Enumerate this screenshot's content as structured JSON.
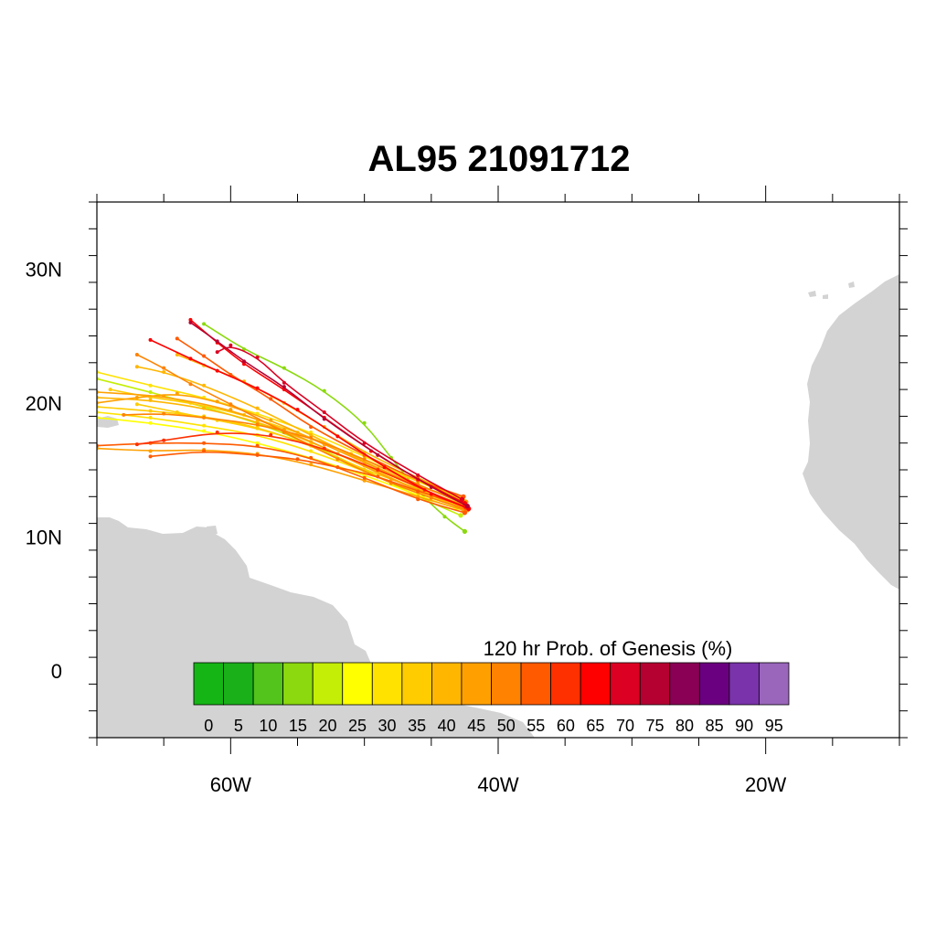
{
  "title": "AL95 21091712",
  "map": {
    "lon_range": [
      -70,
      -10
    ],
    "lat_range": [
      -5,
      35
    ],
    "land_color": "#d3d3d3",
    "lat_labels": [
      {
        "lat": 30,
        "text": "30N"
      },
      {
        "lat": 20,
        "text": "20N"
      },
      {
        "lat": 10,
        "text": "10N"
      },
      {
        "lat": 0,
        "text": "0"
      }
    ],
    "lon_labels": [
      {
        "lon": -60,
        "text": "60W"
      },
      {
        "lon": -40,
        "text": "40W"
      },
      {
        "lon": -20,
        "text": "20W"
      }
    ]
  },
  "colorbar": {
    "title": "120 hr Prob. of Genesis (%)",
    "labels": [
      "0",
      "5",
      "10",
      "15",
      "20",
      "25",
      "30",
      "35",
      "40",
      "45",
      "50",
      "55",
      "60",
      "65",
      "70",
      "75",
      "80",
      "85",
      "90",
      "95"
    ],
    "colors": [
      "#15b515",
      "#1ab01a",
      "#52c41c",
      "#8bd90e",
      "#c4ee05",
      "#ffff00",
      "#ffe200",
      "#ffcc00",
      "#ffb600",
      "#ffa000",
      "#ff8200",
      "#ff5a00",
      "#ff3000",
      "#ff0000",
      "#dc0022",
      "#b50032",
      "#8a0055",
      "#6a0080",
      "#7a33aa",
      "#9966bb"
    ]
  },
  "tracks": [
    {
      "p": 45,
      "pts": [
        [
          -42.5,
          12.4
        ],
        [
          -45,
          13.1
        ],
        [
          -48,
          14.3
        ],
        [
          -52,
          16.2
        ],
        [
          -56,
          18.0
        ],
        [
          -60,
          19.5
        ],
        [
          -65,
          20.5
        ],
        [
          -70,
          20.8
        ]
      ]
    },
    {
      "p": 40,
      "pts": [
        [
          -42.8,
          12.2
        ],
        [
          -46,
          13.5
        ],
        [
          -50,
          15.3
        ],
        [
          -54,
          17.1
        ],
        [
          -58,
          18.6
        ],
        [
          -62,
          19.6
        ],
        [
          -66,
          20.2
        ],
        [
          -70,
          20.4
        ]
      ]
    },
    {
      "p": 40,
      "pts": [
        [
          -42.6,
          12.7
        ],
        [
          -46,
          13.8
        ],
        [
          -50,
          15.6
        ],
        [
          -54,
          17.6
        ],
        [
          -58,
          19.6
        ],
        [
          -62,
          21.3
        ],
        [
          -65,
          22.3
        ],
        [
          -67,
          22.7
        ]
      ]
    },
    {
      "p": 35,
      "pts": [
        [
          -42.9,
          12.5
        ],
        [
          -46,
          13.6
        ],
        [
          -50,
          15.0
        ],
        [
          -54,
          16.8
        ],
        [
          -58,
          18.2
        ],
        [
          -62,
          19.0
        ],
        [
          -66,
          19.4
        ],
        [
          -70,
          19.7
        ]
      ]
    },
    {
      "p": 30,
      "pts": [
        [
          -43.0,
          12.9
        ],
        [
          -46,
          14.1
        ],
        [
          -50,
          16.0
        ],
        [
          -54,
          17.8
        ],
        [
          -58,
          19.2
        ],
        [
          -62,
          20.4
        ],
        [
          -66,
          21.3
        ],
        [
          -70,
          22.3
        ]
      ]
    },
    {
      "p": 30,
      "pts": [
        [
          -43.1,
          12.3
        ],
        [
          -46,
          13.3
        ],
        [
          -50,
          14.9
        ],
        [
          -54,
          16.4
        ],
        [
          -58,
          17.6
        ],
        [
          -62,
          18.3
        ],
        [
          -66,
          18.9
        ],
        [
          -70,
          19.3
        ]
      ]
    },
    {
      "p": 45,
      "pts": [
        [
          -42.4,
          12.6
        ],
        [
          -45.5,
          13.6
        ],
        [
          -49,
          15.1
        ],
        [
          -53,
          16.9
        ],
        [
          -57,
          18.7
        ],
        [
          -61,
          20.1
        ],
        [
          -64,
          20.7
        ],
        [
          -67,
          20.4
        ],
        [
          -70,
          20.0
        ]
      ]
    },
    {
      "p": 50,
      "pts": [
        [
          -42.3,
          12.0
        ],
        [
          -45,
          12.9
        ],
        [
          -48,
          14.0
        ],
        [
          -52,
          15.8
        ],
        [
          -56,
          17.8
        ],
        [
          -60,
          19.9
        ],
        [
          -63,
          21.4
        ],
        [
          -65,
          22.6
        ],
        [
          -67,
          23.6
        ]
      ]
    },
    {
      "p": 55,
      "pts": [
        [
          -42.5,
          11.8
        ],
        [
          -46,
          12.8
        ],
        [
          -50,
          14.4
        ],
        [
          -54,
          15.9
        ],
        [
          -58,
          16.8
        ],
        [
          -62,
          17.0
        ],
        [
          -66,
          17.0
        ],
        [
          -70,
          16.8
        ]
      ]
    },
    {
      "p": 55,
      "pts": [
        [
          -42.6,
          13.0
        ],
        [
          -46,
          14.2
        ],
        [
          -50,
          16.1
        ],
        [
          -54,
          18.2
        ],
        [
          -57,
          20.3
        ],
        [
          -60,
          22.1
        ],
        [
          -62,
          23.5
        ],
        [
          -64,
          24.8
        ]
      ]
    },
    {
      "p": 60,
      "pts": [
        [
          -42.4,
          12.2
        ],
        [
          -45.5,
          13.5
        ],
        [
          -49,
          15.0
        ],
        [
          -53,
          16.6
        ],
        [
          -57,
          17.6
        ],
        [
          -61,
          17.8
        ],
        [
          -65,
          17.2
        ],
        [
          -67,
          16.9
        ]
      ]
    },
    {
      "p": 65,
      "pts": [
        [
          -42.2,
          12.1
        ],
        [
          -45,
          13.2
        ],
        [
          -48.5,
          15.2
        ],
        [
          -52,
          17.5
        ],
        [
          -55,
          19.5
        ],
        [
          -58,
          21.1
        ],
        [
          -61,
          22.4
        ],
        [
          -63,
          23.3
        ],
        [
          -66,
          24.7
        ]
      ]
    },
    {
      "p": 65,
      "pts": [
        [
          -42.5,
          12.5
        ],
        [
          -46,
          14.3
        ],
        [
          -49.5,
          16.4
        ],
        [
          -53,
          18.9
        ],
        [
          -56,
          21.0
        ],
        [
          -59,
          22.9
        ],
        [
          -61,
          24.5
        ],
        [
          -63,
          26.2
        ]
      ]
    },
    {
      "p": 70,
      "pts": [
        [
          -42.7,
          12.8
        ],
        [
          -46,
          14.6
        ],
        [
          -50,
          17.0
        ],
        [
          -53,
          19.3
        ],
        [
          -56,
          21.5
        ],
        [
          -58,
          23.4
        ],
        [
          -60,
          24.3
        ],
        [
          -61,
          23.8
        ]
      ]
    },
    {
      "p": 75,
      "pts": [
        [
          -42.3,
          12.3
        ],
        [
          -45,
          13.7
        ],
        [
          -49,
          16.1
        ],
        [
          -53,
          18.8
        ],
        [
          -56,
          21.2
        ],
        [
          -59,
          23.1
        ],
        [
          -61,
          24.6
        ],
        [
          -63,
          26.0
        ]
      ]
    },
    {
      "p": 15,
      "pts": [
        [
          -42.5,
          10.4
        ],
        [
          -44,
          11.5
        ],
        [
          -46,
          13.4
        ],
        [
          -48,
          15.9
        ],
        [
          -50,
          18.5
        ],
        [
          -53,
          20.9
        ],
        [
          -56,
          22.6
        ],
        [
          -59,
          24.0
        ],
        [
          -62,
          25.9
        ]
      ]
    },
    {
      "p": 20,
      "pts": [
        [
          -42.8,
          11.6
        ],
        [
          -46,
          13.0
        ],
        [
          -50,
          15.0
        ],
        [
          -54,
          16.9
        ],
        [
          -58,
          18.5
        ],
        [
          -62,
          19.7
        ],
        [
          -66,
          20.8
        ],
        [
          -70,
          21.8
        ]
      ]
    },
    {
      "p": 25,
      "pts": [
        [
          -43.1,
          12.1
        ],
        [
          -46,
          13.1
        ],
        [
          -50,
          14.6
        ],
        [
          -54,
          15.9
        ],
        [
          -58,
          17.0
        ],
        [
          -62,
          17.9
        ],
        [
          -66,
          18.5
        ],
        [
          -70,
          18.9
        ]
      ]
    },
    {
      "p": 35,
      "pts": [
        [
          -43.2,
          13.1
        ],
        [
          -47,
          14.5
        ],
        [
          -51,
          16.2
        ],
        [
          -55,
          17.8
        ],
        [
          -59,
          19.1
        ],
        [
          -63,
          20.0
        ],
        [
          -66,
          20.4
        ],
        [
          -69,
          21.0
        ]
      ]
    },
    {
      "p": 45,
      "pts": [
        [
          -42.6,
          12.0
        ],
        [
          -46,
          13.0
        ],
        [
          -50,
          14.2
        ],
        [
          -54,
          15.4
        ],
        [
          -58,
          16.2
        ],
        [
          -62,
          16.5
        ],
        [
          -66,
          16.4
        ],
        [
          -70,
          16.6
        ]
      ]
    },
    {
      "p": 50,
      "pts": [
        [
          -42.9,
          12.6
        ],
        [
          -46,
          13.9
        ],
        [
          -50,
          15.8
        ],
        [
          -54,
          17.4
        ],
        [
          -58,
          18.4
        ],
        [
          -62,
          18.9
        ],
        [
          -65,
          19.2
        ],
        [
          -68,
          19.1
        ]
      ]
    },
    {
      "p": 40,
      "pts": [
        [
          -42.7,
          12.9
        ],
        [
          -46,
          14.4
        ],
        [
          -50,
          16.3
        ],
        [
          -53,
          18.2
        ],
        [
          -56,
          20.0
        ],
        [
          -59,
          21.6
        ],
        [
          -62,
          22.8
        ],
        [
          -64,
          23.6
        ]
      ]
    },
    {
      "p": 55,
      "pts": [
        [
          -42.5,
          12.3
        ],
        [
          -46,
          13.4
        ],
        [
          -49,
          14.5
        ],
        [
          -52,
          15.2
        ],
        [
          -55,
          15.8
        ],
        [
          -58,
          16.1
        ],
        [
          -62,
          16.4
        ],
        [
          -66,
          16.0
        ]
      ]
    },
    {
      "p": 35,
      "pts": [
        [
          -43.0,
          12.4
        ],
        [
          -46,
          13.7
        ],
        [
          -50,
          15.4
        ],
        [
          -54,
          16.9
        ],
        [
          -58,
          18.1
        ],
        [
          -61,
          18.7
        ],
        [
          -64,
          19.3
        ],
        [
          -67,
          19.9
        ]
      ]
    }
  ]
}
